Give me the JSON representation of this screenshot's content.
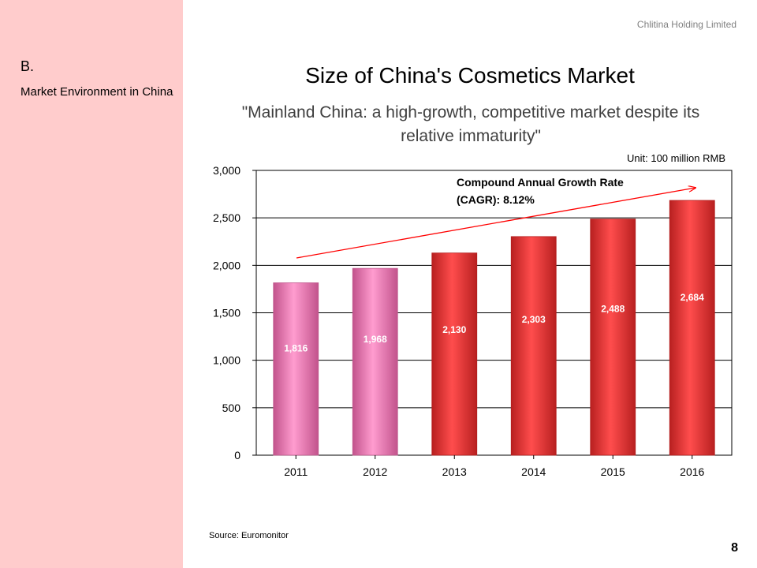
{
  "sidebar": {
    "section_letter": "B.",
    "section_title": "Market Environment in China"
  },
  "header": {
    "company": "Chlitina Holding Limited",
    "title": "Size of China's Cosmetics Market",
    "subtitle": "\"Mainland China: a high-growth, competitive market despite its relative immaturity\""
  },
  "footer": {
    "source": "Source: Euromonitor",
    "page_number": "8"
  },
  "chart_data": {
    "type": "bar",
    "title": "",
    "unit": "Unit: 100 million RMB",
    "categories": [
      "2011",
      "2012",
      "2013",
      "2014",
      "2015",
      "2016"
    ],
    "values": [
      1816,
      1968,
      2130,
      2303,
      2488,
      2684
    ],
    "value_labels": [
      "1,816",
      "1,968",
      "2,130",
      "2,303",
      "2,488",
      "2,684"
    ],
    "ylim": [
      0,
      3000
    ],
    "yticks": [
      0,
      500,
      1000,
      1500,
      2000,
      2500,
      3000
    ],
    "ytick_labels": [
      "0",
      "500",
      "1,000",
      "1,500",
      "2,000",
      "2,500",
      "3,000"
    ],
    "grid": true,
    "bar_colors": [
      "#ff88c2",
      "#ff88c2",
      "#ff3b3b",
      "#ff3b3b",
      "#ff3b3b",
      "#ff3b3b"
    ],
    "bar_edge_colors": [
      "#c05a8e",
      "#c05a8e",
      "#b31d1d",
      "#b31d1d",
      "#b31d1d",
      "#b31d1d"
    ],
    "annotation": {
      "lines": [
        "Compound Annual Growth Rate",
        "(CAGR): 8.12%"
      ],
      "arrow_color": "#ff0000"
    }
  }
}
